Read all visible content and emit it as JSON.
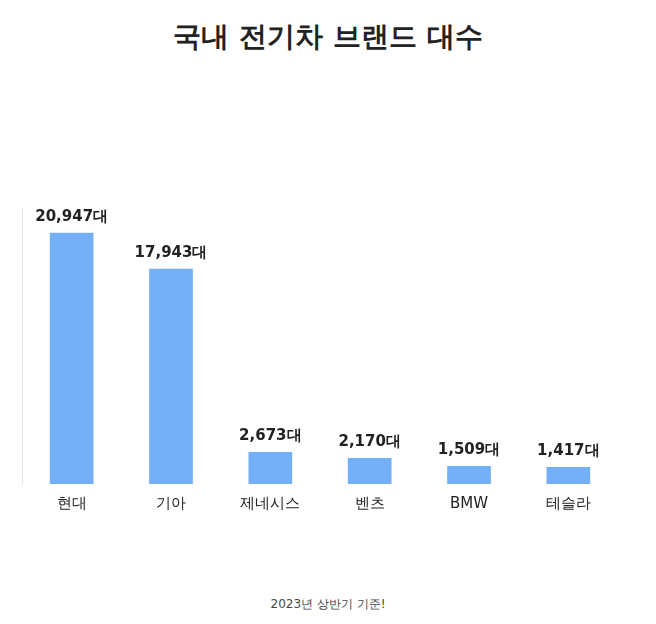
{
  "chart_data": {
    "type": "bar",
    "title": "국내 전기차 브랜드 대수",
    "categories": [
      "현대",
      "기아",
      "제네시스",
      "벤츠",
      "BMW",
      "테슬라"
    ],
    "values": [
      20947,
      17943,
      2673,
      2170,
      1509,
      1417
    ],
    "value_labels": [
      "20,947대",
      "17,943대",
      "2,673대",
      "2,170대",
      "1,509대",
      "1,417대"
    ],
    "data_labels": true,
    "color": "#74b0f8",
    "ylim": [
      0,
      23000
    ],
    "grid": false,
    "tick_labels": "x",
    "annotations": [
      "2023년 상반기 기준!"
    ]
  }
}
